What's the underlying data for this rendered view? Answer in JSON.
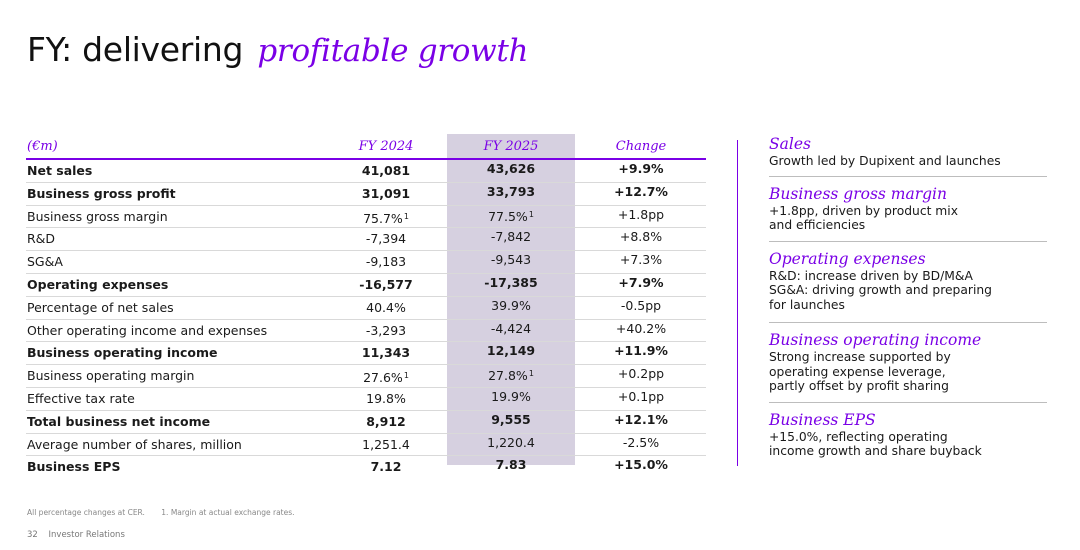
{
  "title": {
    "main": "FY: delivering",
    "accent": "profitable growth"
  },
  "table": {
    "headers": {
      "label": "(€m)",
      "fy2024": "FY 2024",
      "fy2025": "FY 2025",
      "change": "Change"
    },
    "rows": [
      {
        "label": "Net sales",
        "fy2024": "41,081",
        "fy2025": "43,626",
        "change": "+9.9%",
        "bold": true
      },
      {
        "label": "Business gross profit",
        "fy2024": "31,091",
        "fy2025": "33,793",
        "change": "+12.7%",
        "bold": true
      },
      {
        "label": "Business gross margin",
        "fy2024": "75.7%",
        "fy2024_fn": "1",
        "fy2025": "77.5%",
        "fy2025_fn": "1",
        "change": "+1.8pp",
        "bold": false
      },
      {
        "label": "R&D",
        "fy2024": "-7,394",
        "fy2025": "-7,842",
        "change": "+8.8%",
        "bold": false
      },
      {
        "label": "SG&A",
        "fy2024": "-9,183",
        "fy2025": "-9,543",
        "change": "+7.3%",
        "bold": false
      },
      {
        "label": "Operating expenses",
        "fy2024": "-16,577",
        "fy2025": "-17,385",
        "change": "+7.9%",
        "bold": true
      },
      {
        "label": "Percentage of net sales",
        "fy2024": "40.4%",
        "fy2025": "39.9%",
        "change": "-0.5pp",
        "bold": false
      },
      {
        "label": "Other operating income and expenses",
        "fy2024": "-3,293",
        "fy2025": "-4,424",
        "change": "+40.2%",
        "bold": false
      },
      {
        "label": "Business operating income",
        "fy2024": "11,343",
        "fy2025": "12,149",
        "change": "+11.9%",
        "bold": true
      },
      {
        "label": "Business operating margin",
        "fy2024": "27.6%",
        "fy2024_fn": "1",
        "fy2025": "27.8%",
        "fy2025_fn": "1",
        "change": "+0.2pp",
        "bold": false
      },
      {
        "label": "Effective tax rate",
        "fy2024": "19.8%",
        "fy2025": "19.9%",
        "change": "+0.1pp",
        "bold": false
      },
      {
        "label": "Total business net income",
        "fy2024": "8,912",
        "fy2025": "9,555",
        "change": "+12.1%",
        "bold": true
      },
      {
        "label": "Average number of shares, million",
        "fy2024": "1,251.4",
        "fy2025": "1,220.4",
        "change": "-2.5%",
        "bold": false
      },
      {
        "label": "Business EPS",
        "fy2024": "7.12",
        "fy2025": "7.83",
        "change": "+15.0%",
        "bold": true
      }
    ]
  },
  "panel": [
    {
      "title": "Sales",
      "lines": [
        "Growth led by Dupixent and launches"
      ]
    },
    {
      "title": "Business gross margin",
      "lines": [
        "+1.8pp, driven by product mix",
        "and efficiencies"
      ]
    },
    {
      "title": "Operating expenses",
      "lines": [
        "R&D: increase driven by BD/M&A",
        "SG&A: driving growth and preparing",
        "for launches"
      ]
    },
    {
      "title": "Business operating income",
      "lines": [
        "Strong increase supported by",
        "operating expense leverage,",
        "partly offset by profit sharing"
      ]
    },
    {
      "title": "Business EPS",
      "lines": [
        "+15.0%, reflecting operating",
        "income growth and share buyback"
      ]
    }
  ],
  "footnotes": {
    "note1": "All percentage changes at CER.",
    "note2": "1. Margin at actual exchange rates."
  },
  "footer": {
    "page": "32",
    "section": "Investor Relations"
  },
  "colors": {
    "accent": "#7a00e6",
    "band": "#d6d0e0"
  }
}
